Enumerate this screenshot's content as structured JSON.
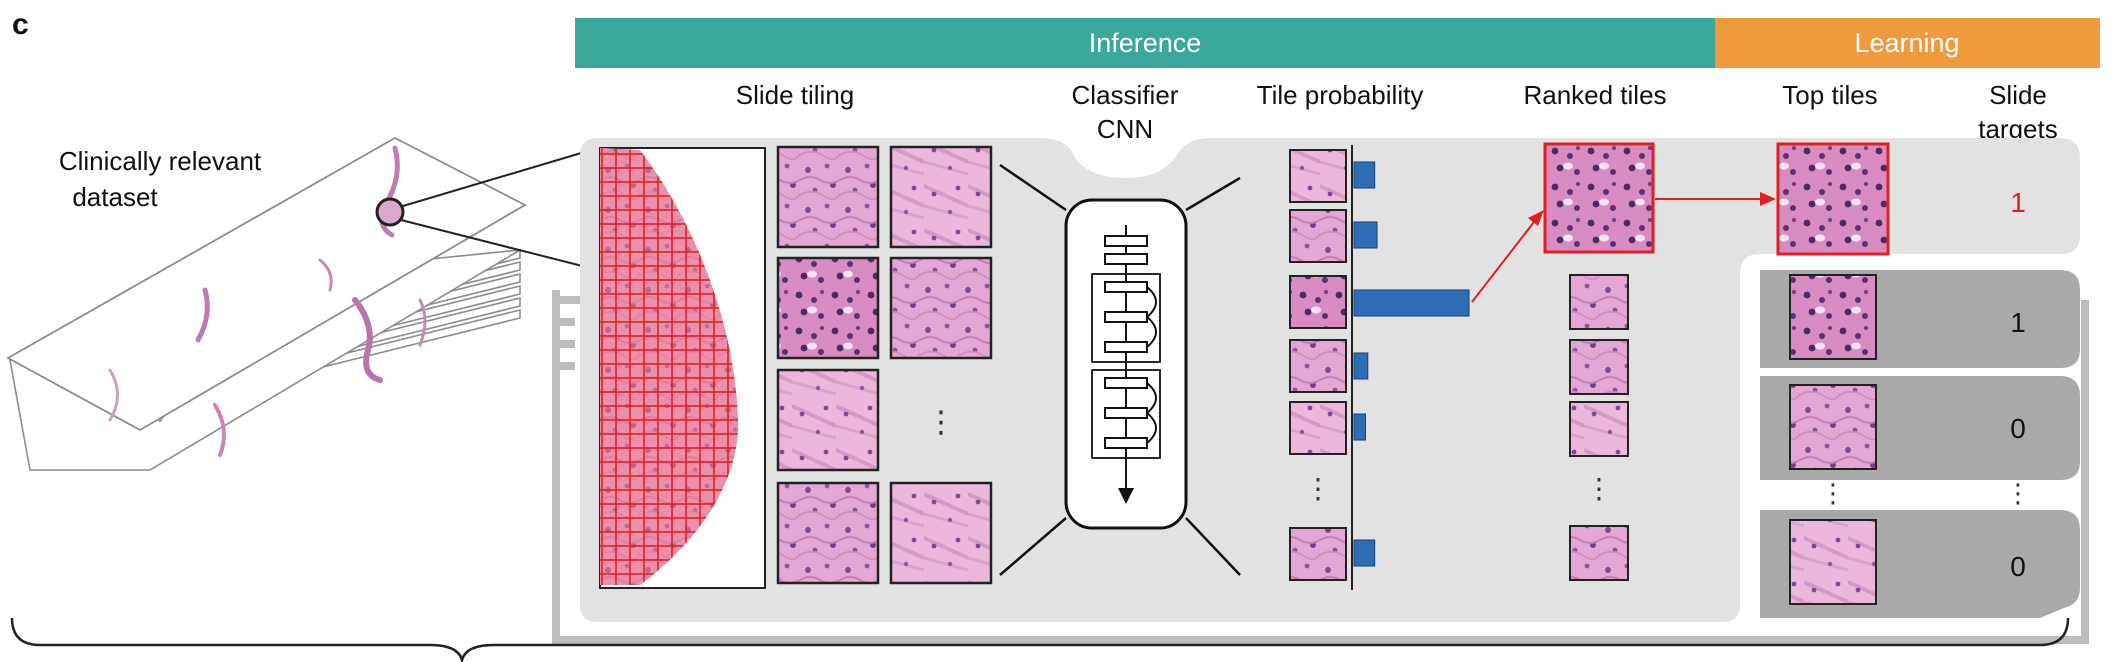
{
  "panel_letter": "c",
  "banners": {
    "inference": "Inference",
    "learning": "Learning"
  },
  "dataset_label": {
    "line1": "Clinically relevant",
    "line2": "dataset"
  },
  "column_headers": {
    "slide_tiling": "Slide tiling",
    "classifier_line1": "Classifier",
    "classifier_line2": "CNN",
    "tile_probability": "Tile probability",
    "ranked_tiles": "Ranked tiles",
    "top_tiles": "Top tiles",
    "slide_targets_line1": "Slide",
    "slide_targets_line2": "targets"
  },
  "tiling_ellipsis": "⋮",
  "probability_ellipsis": "⋮",
  "ranked_ellipsis": "⋮",
  "top_ellipsis": "⋮",
  "targets_ellipsis": "⋮",
  "tile_probabilities": [
    0.18,
    0.2,
    1.0,
    0.12,
    0.1,
    0.18
  ],
  "slide_targets": [
    {
      "value": "1",
      "highlight": true
    },
    {
      "value": "1",
      "highlight": false
    },
    {
      "value": "0",
      "highlight": false
    },
    {
      "value": "0",
      "highlight": false
    }
  ],
  "colors": {
    "inference": "#3aa99c",
    "learning": "#ef9a3c",
    "highlight": "#e02020",
    "bar": "#2d6db5",
    "panel_light": "#e2e2e2",
    "panel_dark": "#a7a7a7",
    "tissue": "#d98cc2",
    "tissue_dark": "#6a3f7a"
  }
}
